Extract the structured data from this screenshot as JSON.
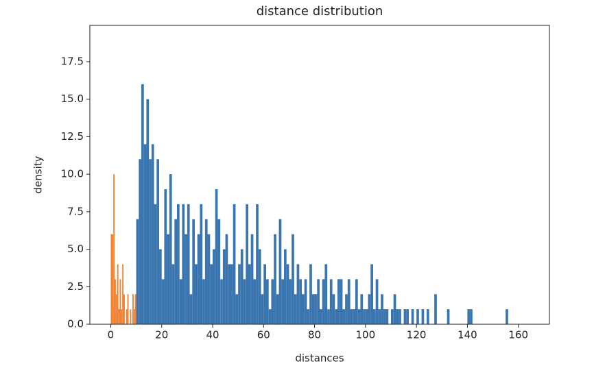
{
  "chart_data": {
    "type": "histogram",
    "title": "distance distribution",
    "xlabel": "distances",
    "ylabel": "density",
    "xlim": [
      -8.2,
      172.2
    ],
    "ylim": [
      0,
      19.92
    ],
    "xticks": [
      0,
      20,
      40,
      60,
      80,
      100,
      120,
      140,
      160
    ],
    "yticks": [
      {
        "value": 0,
        "label": "0.0"
      },
      2.5,
      {
        "value": 5,
        "label": "5.0"
      },
      7.5,
      {
        "value": 10,
        "label": "10.0"
      },
      12.5,
      {
        "value": 15,
        "label": "15.0"
      },
      17.5
    ],
    "series": [
      {
        "color": "#3a75af",
        "bins": [
          10,
          11,
          12,
          13,
          14,
          15,
          16,
          17,
          18,
          19,
          20,
          21,
          22,
          23,
          24,
          25,
          26,
          27,
          28,
          29,
          30,
          31,
          32,
          33,
          34,
          35,
          36,
          37,
          38,
          39,
          40,
          41,
          42,
          43,
          44,
          45,
          46,
          47,
          48,
          49,
          50,
          51,
          52,
          53,
          54,
          55,
          56,
          57,
          58,
          59,
          60,
          61,
          62,
          63,
          64,
          65,
          66,
          67,
          68,
          69,
          70,
          71,
          72,
          73,
          74,
          75,
          76,
          77,
          78,
          79,
          80,
          81,
          82,
          83,
          84,
          85,
          86,
          87,
          88,
          89,
          90,
          91,
          92,
          93,
          94,
          95,
          96,
          97,
          98,
          99,
          100,
          101,
          102,
          103,
          104,
          105,
          106,
          107,
          108,
          109,
          110,
          111,
          112,
          113,
          114,
          115,
          116,
          117,
          118,
          119,
          120,
          121,
          122,
          123,
          124,
          125,
          126,
          127,
          128,
          129,
          130,
          131,
          132,
          133,
          134,
          135,
          136,
          137,
          138,
          139,
          140,
          141,
          142,
          143,
          144,
          145,
          146,
          147,
          148,
          149,
          150,
          151,
          152,
          153,
          154,
          155,
          156
        ],
        "values": [
          7,
          11,
          16,
          12,
          15,
          11,
          12,
          8,
          11,
          5,
          3,
          9,
          6,
          10,
          4,
          7,
          8,
          3,
          8,
          6,
          8,
          2,
          7,
          4,
          6,
          8,
          3,
          7,
          6,
          4,
          5,
          9,
          7,
          3,
          5,
          6,
          4,
          4,
          8,
          2,
          4,
          5,
          3,
          8,
          4,
          6,
          3,
          8,
          5,
          2,
          4,
          3,
          1,
          3,
          6,
          2,
          7,
          3,
          5,
          4,
          3,
          6,
          2,
          4,
          3,
          2,
          3,
          1,
          4,
          2,
          2,
          3,
          1,
          3,
          4,
          1,
          3,
          2,
          1,
          3,
          3,
          1,
          2,
          3,
          1,
          1,
          3,
          1,
          2,
          1,
          1,
          2,
          4,
          1,
          3,
          1,
          2,
          1,
          1,
          0,
          1,
          2,
          1,
          1,
          0,
          1,
          1,
          0,
          1,
          0,
          1,
          0,
          1,
          0,
          1,
          0,
          0,
          2,
          0,
          0,
          0,
          0,
          1,
          0,
          0,
          0,
          0,
          0,
          0,
          0,
          1,
          1,
          0,
          0,
          0,
          0,
          0,
          0,
          0,
          0,
          0,
          0,
          0,
          0,
          0,
          1
        ]
      },
      {
        "color": "#f08232",
        "bins": [
          0,
          0.5,
          1,
          1.5,
          2,
          2.5,
          3,
          3.5,
          4,
          4.5,
          5,
          5.5,
          6,
          6.5,
          7,
          7.5,
          8,
          8.5,
          9,
          9.5,
          10
        ],
        "values": [
          6,
          6,
          10,
          3,
          2,
          4,
          1,
          3,
          1,
          4,
          2,
          0,
          1,
          2,
          0,
          1,
          0,
          2,
          1,
          2
        ]
      }
    ]
  }
}
